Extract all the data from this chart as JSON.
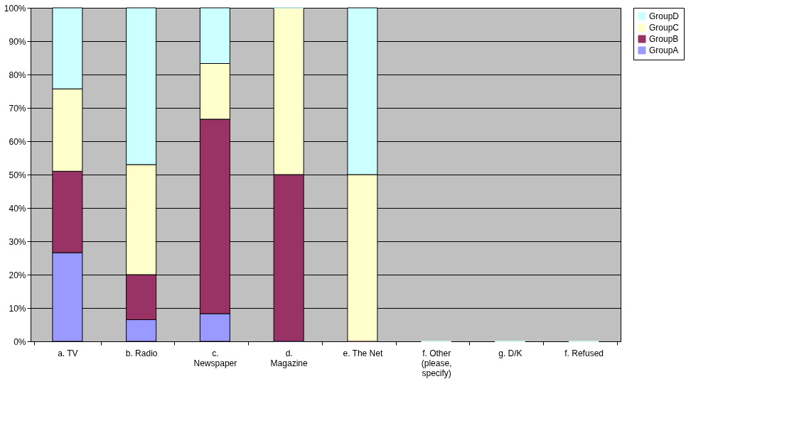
{
  "chart_data": {
    "type": "bar",
    "stacked": true,
    "categories": [
      "a. TV",
      "b. Radio",
      "c. Newspaper",
      "d. Magazine",
      "e. The Net",
      "f. Other (please, specify)",
      "g. D/K",
      "f. Refused"
    ],
    "series": [
      {
        "name": "GroupA",
        "color": "#9999ff",
        "values": [
          26.6,
          6.5,
          8.3,
          0,
          0,
          0,
          0,
          0
        ]
      },
      {
        "name": "GroupB",
        "color": "#993366",
        "values": [
          24.4,
          13.5,
          58.3,
          50,
          0,
          0,
          0,
          0
        ]
      },
      {
        "name": "GroupC",
        "color": "#ffffcc",
        "values": [
          24.7,
          33,
          16.7,
          50,
          50,
          0,
          0,
          0
        ]
      },
      {
        "name": "GroupD",
        "color": "#ccffff",
        "values": [
          24.3,
          47,
          16.7,
          0,
          50,
          0,
          0,
          0
        ]
      }
    ],
    "ylim": [
      0,
      100
    ],
    "yticks": [
      {
        "value": 0,
        "label": "0%"
      },
      {
        "value": 10,
        "label": "10%"
      },
      {
        "value": 20,
        "label": "20%"
      },
      {
        "value": 30,
        "label": "30%"
      },
      {
        "value": 40,
        "label": "40%"
      },
      {
        "value": 50,
        "label": "50%"
      },
      {
        "value": 60,
        "label": "60%"
      },
      {
        "value": 70,
        "label": "70%"
      },
      {
        "value": 80,
        "label": "80%"
      },
      {
        "value": 90,
        "label": "90%"
      },
      {
        "value": 100,
        "label": "100%"
      }
    ],
    "grid": "y",
    "legend": "right"
  }
}
